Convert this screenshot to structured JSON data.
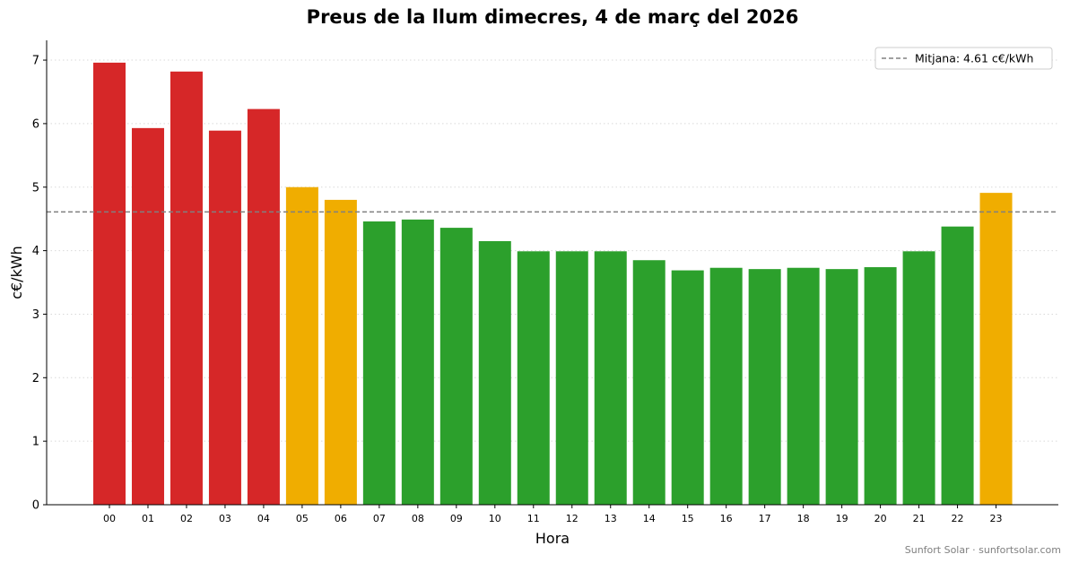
{
  "chart_data": {
    "type": "bar",
    "title": "Preus de la llum dimecres, 4 de març del 2026",
    "xlabel": "Hora",
    "ylabel": "c€/kWh",
    "categories": [
      "00",
      "01",
      "02",
      "03",
      "04",
      "05",
      "06",
      "07",
      "08",
      "09",
      "10",
      "11",
      "12",
      "13",
      "14",
      "15",
      "16",
      "17",
      "18",
      "19",
      "20",
      "21",
      "22",
      "23"
    ],
    "values": [
      6.96,
      5.93,
      6.82,
      5.89,
      6.23,
      5.0,
      4.8,
      4.46,
      4.49,
      4.36,
      4.15,
      3.99,
      3.99,
      3.99,
      3.85,
      3.69,
      3.73,
      3.71,
      3.73,
      3.71,
      3.74,
      3.99,
      4.38,
      4.91
    ],
    "bar_levels": [
      "high",
      "high",
      "high",
      "high",
      "high",
      "mid",
      "mid",
      "low",
      "low",
      "low",
      "low",
      "low",
      "low",
      "low",
      "low",
      "low",
      "low",
      "low",
      "low",
      "low",
      "low",
      "low",
      "low",
      "mid"
    ],
    "level_colors": {
      "high": "#d62728",
      "mid": "#f0ad00",
      "low": "#2ca02c"
    },
    "ylim": [
      0,
      7.3
    ],
    "yticks": [
      "0",
      "1",
      "2",
      "3",
      "4",
      "5",
      "6",
      "7"
    ],
    "grid": "y-dotted",
    "mean": {
      "value": 4.61,
      "label": "Mitjana: 4.61 c€/kWh",
      "color": "#808080",
      "style": "dashed"
    },
    "legend_position": "top-right"
  },
  "footer": {
    "credit": "Sunfort Solar · sunfortsolar.com"
  }
}
